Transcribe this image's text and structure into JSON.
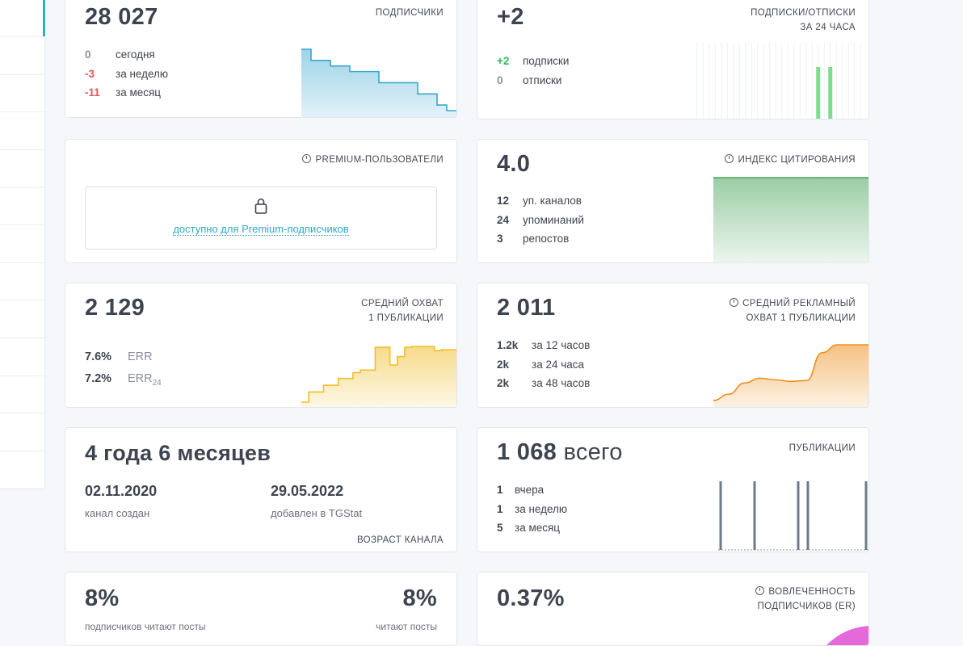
{
  "subscribers": {
    "value": "28 027",
    "title": "ПОДПИСЧИКИ",
    "rows": [
      {
        "num": "0",
        "label": "сегодня"
      },
      {
        "num": "-3",
        "label": "за неделю"
      },
      {
        "num": "-11",
        "label": "за месяц"
      }
    ],
    "trend": [
      28038,
      28036,
      28036,
      28035,
      28035,
      28034,
      28034,
      28034,
      28032,
      28032,
      28032,
      28032,
      28030,
      28030,
      28028,
      28027,
      28027
    ],
    "color": "#3aa7cf"
  },
  "subs24": {
    "value": "+2",
    "title_line1": "ПОДПИСКИ/ОТПИСКИ",
    "title_line2": "ЗА 24 ЧАСА",
    "rows": [
      {
        "num": "+2",
        "label": "подписки"
      },
      {
        "num": "0",
        "label": "отписки"
      }
    ],
    "bars": [
      0,
      0,
      0,
      0,
      0,
      0,
      0,
      0,
      0,
      0,
      0,
      0,
      0,
      0,
      0,
      0,
      0,
      0,
      0,
      0,
      1,
      0,
      1,
      0,
      0,
      0,
      0,
      0
    ],
    "color": "#7fdc8d"
  },
  "premium": {
    "title": "PREMIUM-ПОЛЬЗОВАТЕЛИ",
    "lock_text": "доступно для Premium-подписчиков"
  },
  "citation": {
    "value": "4.0",
    "title": "ИНДЕКС ЦИТИРОВАНИЯ",
    "rows": [
      {
        "num": "12",
        "label": "уп. каналов"
      },
      {
        "num": "24",
        "label": "упоминаний"
      },
      {
        "num": "3",
        "label": "репостов"
      }
    ],
    "color": "#48a55b"
  },
  "reach": {
    "value": "2 129",
    "title_line1": "СРЕДНИЙ ОХВАТ",
    "title_line2": "1 ПУБЛИКАЦИИ",
    "err_value": "7.6%",
    "err_label": "ERR",
    "err24_value": "7.2%",
    "err24_label": "ERR",
    "err24_sub": "24",
    "trend": [
      1500,
      1620,
      1620,
      1700,
      1700,
      1780,
      1780,
      1850,
      1880,
      1880,
      2150,
      2150,
      1940,
      2040,
      2150,
      2160,
      2160,
      2160,
      2110,
      2120,
      2120,
      2120
    ],
    "color": "#f0be2a"
  },
  "ad_reach": {
    "value": "2 011",
    "title_line1": "СРЕДНИЙ РЕКЛАМНЫЙ",
    "title_line2": "ОХВАТ 1 ПУБЛИКАЦИИ",
    "rows": [
      {
        "num": "1.2k",
        "label": "за 12 часов"
      },
      {
        "num": "2k",
        "label": "за 24 часа"
      },
      {
        "num": "2k",
        "label": "за 48 часов"
      }
    ],
    "trend": [
      1300,
      1380,
      1520,
      1580,
      1560,
      1540,
      1550,
      1900,
      2000,
      2000,
      2000
    ],
    "color": "#ee8f1b"
  },
  "age": {
    "value": "4 года 6 месяцев",
    "created_date": "02.11.2020",
    "created_label": "канал создан",
    "added_date": "29.05.2022",
    "added_label": "добавлен в TGStat",
    "title": "ВОЗРАСТ КАНАЛА"
  },
  "publications": {
    "value": "1 068",
    "value_suffix": "всего",
    "title": "ПУБЛИКАЦИИ",
    "rows": [
      {
        "num": "1",
        "label": "вчера"
      },
      {
        "num": "1",
        "label": "за неделю"
      },
      {
        "num": "5",
        "label": "за месяц"
      }
    ],
    "bars": [
      1,
      0,
      0,
      0,
      0,
      0,
      0,
      1,
      0,
      0,
      0,
      0,
      0,
      0,
      0,
      0,
      1,
      0,
      1,
      0,
      0,
      0,
      0,
      0,
      0,
      0,
      0,
      0,
      0,
      0,
      1
    ],
    "color": "#6c7b8c"
  },
  "read": {
    "left_value": "8%",
    "left_label": "подписчиков читают посты",
    "right_value": "8%",
    "right_label": "читают посты"
  },
  "engagement": {
    "value": "0.37%",
    "title_line1": "ВОВЛЕЧЕННОСТЬ",
    "title_line2": "ПОДПИСЧИКОВ (ER)",
    "color": "#e24fd5"
  }
}
